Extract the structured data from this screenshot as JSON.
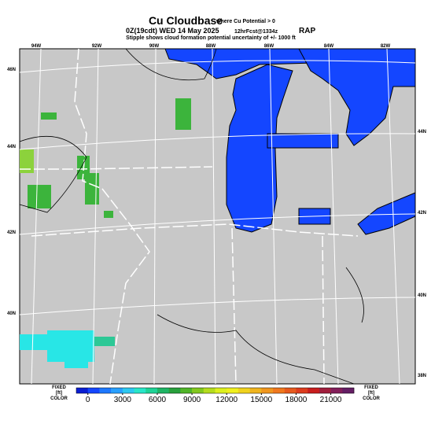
{
  "header": {
    "title": "Cu Cloudbase",
    "title_note": "where Cu Potential > 0",
    "valid_time": "0Z(19cdt) WED 14 May 2025",
    "forecast": "12hrFcst@1334z",
    "model": "RAP",
    "subtitle": "Stipple shows cloud formation potential uncertainty of +/- 1000 ft"
  },
  "map": {
    "top_labels": [
      "94W",
      "92W",
      "90W",
      "88W",
      "86W",
      "84W",
      "82W"
    ],
    "left_labels": [
      "46N",
      "44N",
      "42N",
      "40N"
    ],
    "right_labels": [
      "44N",
      "42N",
      "40N",
      "38N"
    ]
  },
  "colorbar": {
    "left_label": [
      "FIXED",
      "[ft]",
      "COLOR"
    ],
    "right_label": [
      "FIXED",
      "[ft]",
      "COLOR"
    ],
    "clim": [
      -1000,
      23000
    ],
    "ticks": [
      0,
      3000,
      6000,
      9000,
      12000,
      15000,
      18000,
      21000
    ],
    "colors": [
      "#0a1ed2",
      "#1446ff",
      "#1e78ff",
      "#28a0ff",
      "#2dc8f0",
      "#28e6c8",
      "#1ed296",
      "#1eb464",
      "#28a03c",
      "#50b428",
      "#82c81e",
      "#b4dc1e",
      "#dcf01e",
      "#f0f01e",
      "#f0d21e",
      "#f0b41e",
      "#f0961e",
      "#f0781e",
      "#e65a1e",
      "#dc3c1e",
      "#c81e1e",
      "#a01e3c",
      "#821e5a",
      "#641e64"
    ]
  }
}
